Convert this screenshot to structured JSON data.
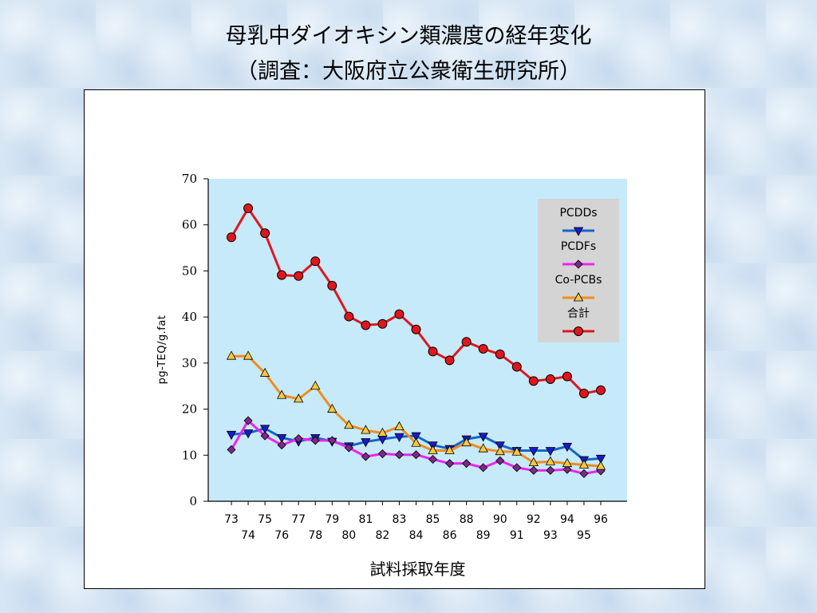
{
  "page": {
    "title_line1": "母乳中ダイオキシン類濃度の経年変化",
    "title_line2": "（調査：大阪府立公衆衛生研究所）"
  },
  "chart_data": {
    "type": "line",
    "xlabel": "試料採取年度",
    "ylabel": "pg-TEQ/g.fat",
    "ylim": [
      0,
      70
    ],
    "yticks": [
      0,
      10,
      20,
      30,
      40,
      50,
      60,
      70
    ],
    "categories": [
      "73",
      "74",
      "75",
      "76",
      "77",
      "78",
      "79",
      "80",
      "81",
      "82",
      "83",
      "84",
      "85",
      "86",
      "88",
      "89",
      "90",
      "91",
      "92",
      "93",
      "94",
      "95",
      "96"
    ],
    "legend_position": "top-right",
    "grid": false,
    "plot_background": "#c6eafa",
    "series": [
      {
        "name": "PCDDs",
        "color": "#1565c8",
        "marker": "triangle-down",
        "marker_color": "#1a1acc",
        "values": [
          14.5,
          14.8,
          15.8,
          13.8,
          13.0,
          13.8,
          13.0,
          12.0,
          12.9,
          13.5,
          14.0,
          14.2,
          12.2,
          11.4,
          13.5,
          14.1,
          12.2,
          11.0,
          11.0,
          11.0,
          11.9,
          9.0,
          9.3
        ]
      },
      {
        "name": "PCDFs",
        "color": "#ee22ee",
        "marker": "diamond",
        "marker_color": "#7a2a8a",
        "values": [
          11.2,
          17.5,
          14.2,
          12.2,
          13.6,
          13.2,
          13.2,
          11.6,
          9.7,
          10.3,
          10.1,
          10.1,
          9.1,
          8.2,
          8.2,
          7.3,
          8.8,
          7.3,
          6.7,
          6.7,
          6.9,
          6.0,
          6.6
        ]
      },
      {
        "name": "Co-PCBs",
        "color": "#f08c1e",
        "marker": "triangle-up",
        "marker_color": "#f5c842",
        "values": [
          31.5,
          31.5,
          27.8,
          23.0,
          22.2,
          25.0,
          20.0,
          16.5,
          15.4,
          14.8,
          16.2,
          12.6,
          11.0,
          11.0,
          12.7,
          11.4,
          10.8,
          10.7,
          8.4,
          8.6,
          8.2,
          7.9,
          7.6
        ]
      },
      {
        "name": "合計",
        "color": "#e0161e",
        "marker": "circle",
        "marker_color": "#e0161e",
        "values": [
          57.3,
          63.6,
          58.2,
          49.1,
          48.9,
          52.1,
          46.8,
          40.1,
          38.2,
          38.5,
          40.6,
          37.3,
          32.5,
          30.6,
          34.6,
          33.1,
          31.9,
          29.2,
          26.1,
          26.5,
          27.1,
          23.4,
          24.1
        ]
      }
    ]
  }
}
